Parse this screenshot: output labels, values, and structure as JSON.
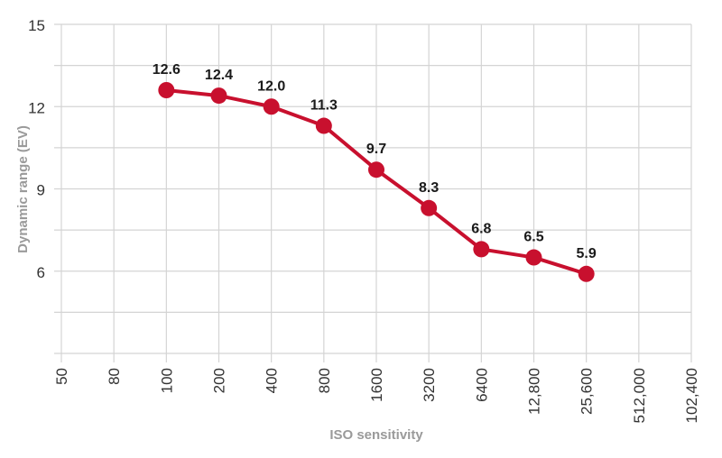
{
  "chart_data": {
    "type": "line",
    "title": "",
    "xlabel": "ISO sensitivity",
    "ylabel": "Dynamic range (EV)",
    "categories": [
      "50",
      "80",
      "100",
      "200",
      "400",
      "800",
      "1600",
      "3200",
      "6400",
      "12,800",
      "25,600",
      "512,000",
      "102,400"
    ],
    "ylim": [
      3,
      15
    ],
    "yticks": [
      6,
      9,
      12,
      15
    ],
    "ytick_labels": [
      "6",
      "9",
      "12",
      "15"
    ],
    "grid": true,
    "series": [
      {
        "name": "Dynamic range",
        "color": "#c8102e",
        "x": [
          "100",
          "200",
          "400",
          "800",
          "1600",
          "3200",
          "6400",
          "12,800",
          "25,600"
        ],
        "values": [
          12.6,
          12.4,
          12.0,
          11.3,
          9.7,
          8.3,
          6.8,
          6.5,
          5.9
        ],
        "labels": [
          "12.6",
          "12.4",
          "12.0",
          "11.3",
          "9.7",
          "8.3",
          "6.8",
          "6.5",
          "5.9"
        ]
      }
    ]
  }
}
